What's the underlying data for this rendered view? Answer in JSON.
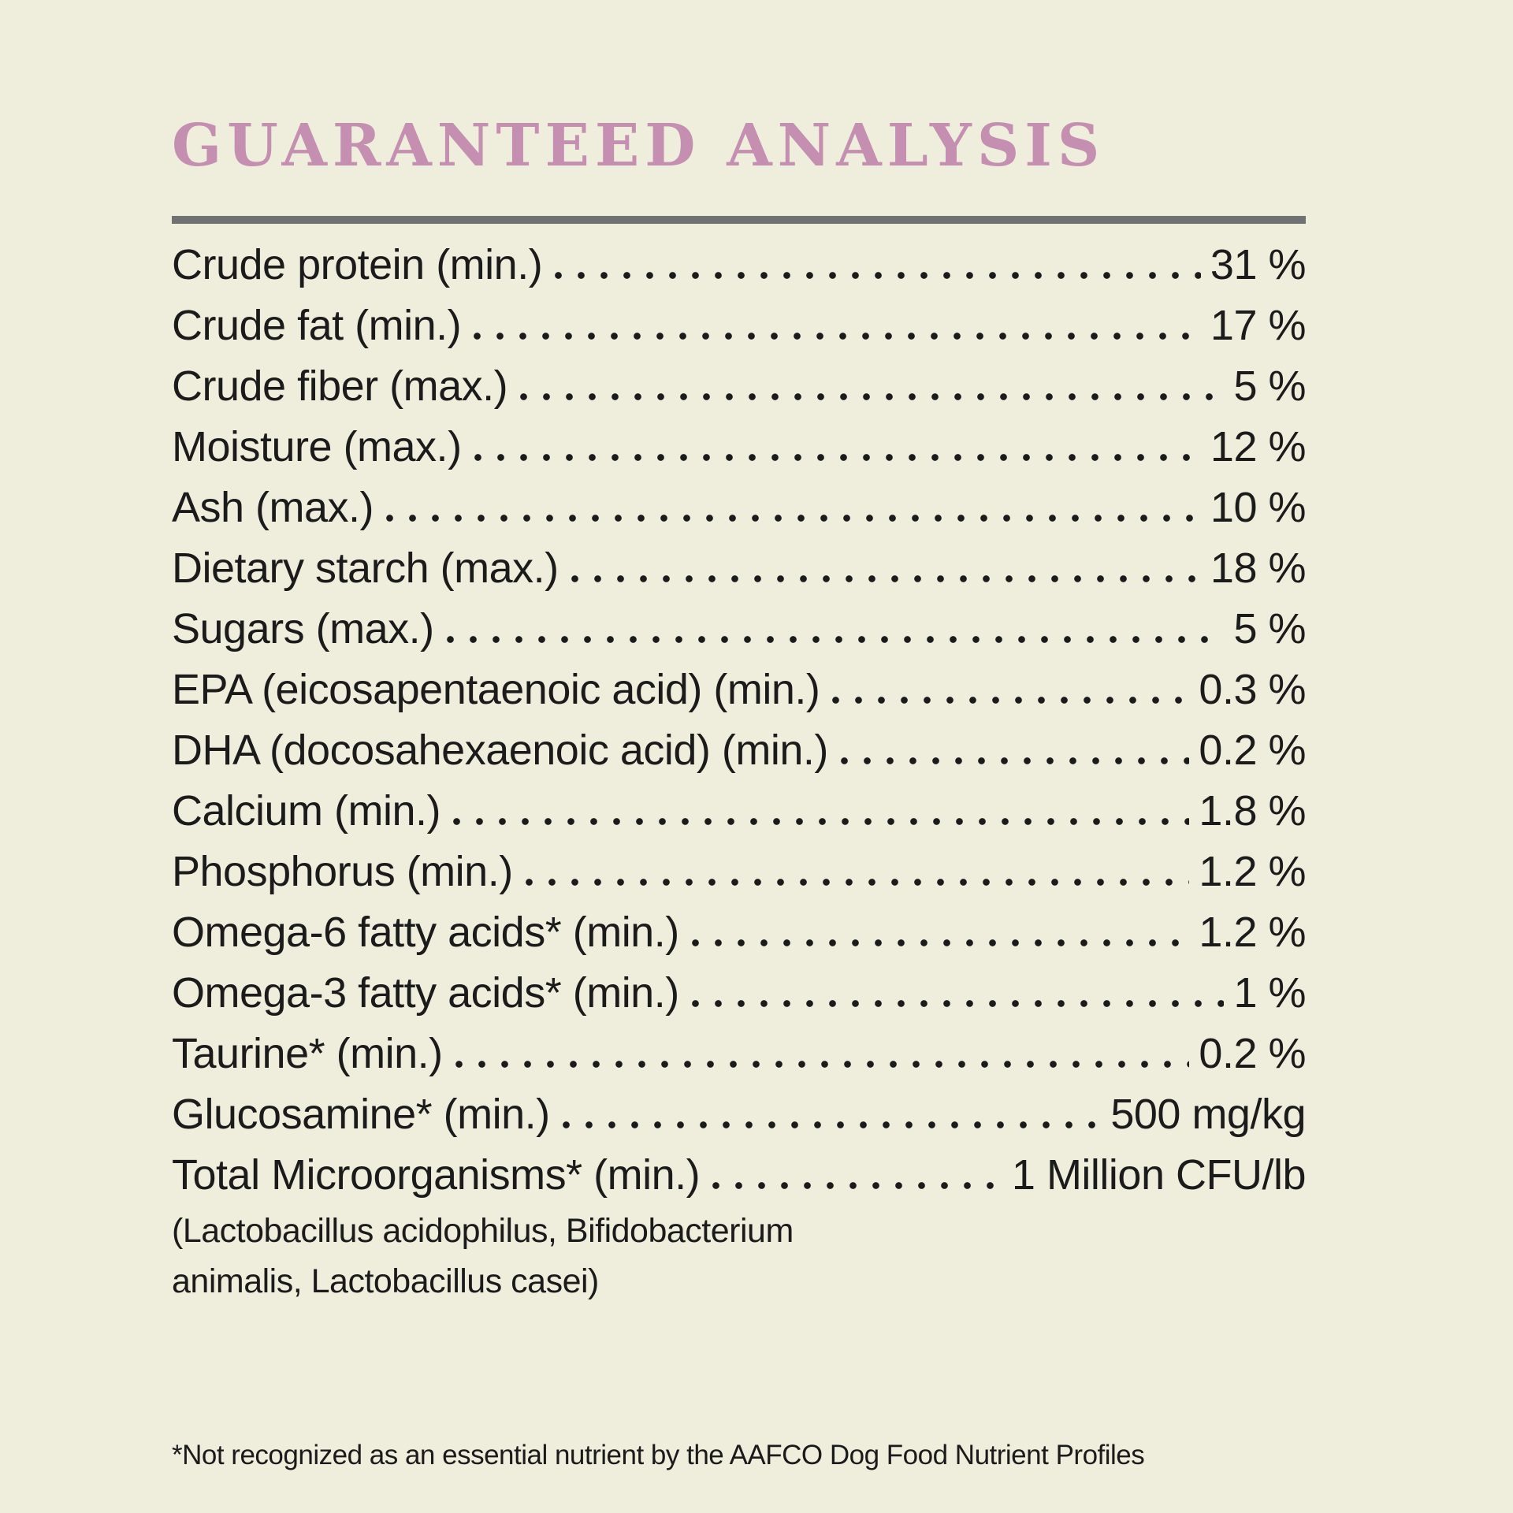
{
  "header": {
    "title": "GUARANTEED ANALYSIS"
  },
  "colors": {
    "background": "#efeedd",
    "text": "#1b1b1b",
    "title": "#c48fb0",
    "rule": "#6f7173"
  },
  "analysis": {
    "rows": [
      {
        "label": "Crude protein (min.)",
        "value": "31 %"
      },
      {
        "label": "Crude fat (min.)",
        "value": "17 %"
      },
      {
        "label": "Crude fiber (max.)",
        "value": "5 %"
      },
      {
        "label": "Moisture (max.)",
        "value": "12 %"
      },
      {
        "label": "Ash (max.)",
        "value": "10 %"
      },
      {
        "label": "Dietary starch (max.)",
        "value": "18 %"
      },
      {
        "label": "Sugars (max.)",
        "value": "5 %"
      },
      {
        "label": "EPA (eicosapentaenoic acid) (min.)",
        "value": "0.3 %"
      },
      {
        "label": "DHA (docosahexaenoic acid) (min.)",
        "value": "0.2 %"
      },
      {
        "label": "Calcium (min.)",
        "value": "1.8 %"
      },
      {
        "label": "Phosphorus (min.)",
        "value": "1.2 %"
      },
      {
        "label": "Omega-6 fatty acids* (min.)",
        "value": "1.2 %"
      },
      {
        "label": "Omega-3 fatty acids* (min.)",
        "value": "1 %"
      },
      {
        "label": "Taurine* (min.)",
        "value": "0.2 %"
      },
      {
        "label": "Glucosamine* (min.)",
        "value": "500 mg/kg"
      },
      {
        "label": "Total Microorganisms* (min.)",
        "value": "1 Million CFU/lb"
      }
    ],
    "note_lines": [
      "(Lactobacillus acidophilus, Bifidobacterium",
      "animalis, Lactobacillus casei)"
    ]
  },
  "footer": {
    "footnote": "*Not recognized as an essential nutrient by the AAFCO Dog Food Nutrient Profiles"
  }
}
